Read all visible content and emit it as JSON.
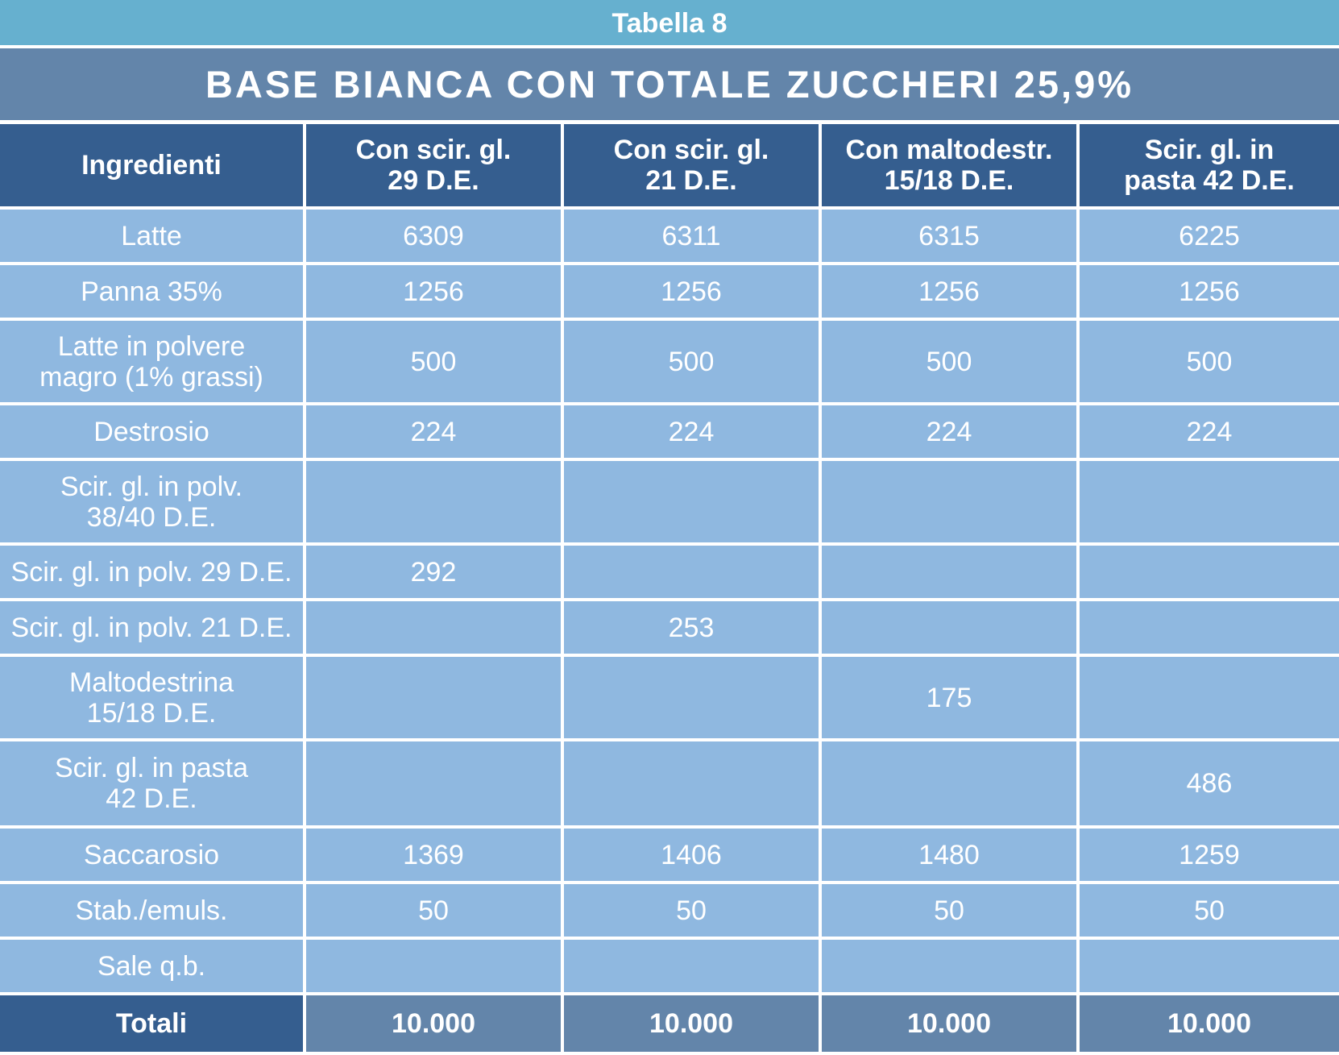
{
  "table_label": "Tabella 8",
  "title": "BASE BIANCA CON TOTALE ZUCCHERI 25,9%",
  "header": {
    "ingredients": "Ingredienti",
    "columns": [
      {
        "line1": "Con scir. gl.",
        "line2": "29 D.E."
      },
      {
        "line1": "Con scir. gl.",
        "line2": "21 D.E."
      },
      {
        "line1": "Con maltodestr.",
        "line2": "15/18 D.E."
      },
      {
        "line1": "Scir. gl. in",
        "line2": "pasta 42 D.E."
      }
    ]
  },
  "rows": [
    {
      "label1": "Latte",
      "label2": "",
      "values": [
        "6309",
        "6311",
        "6315",
        "6225"
      ]
    },
    {
      "label1": "Panna 35%",
      "label2": "",
      "values": [
        "1256",
        "1256",
        "1256",
        "1256"
      ]
    },
    {
      "label1": "Latte in polvere",
      "label2": "magro (1% grassi)",
      "values": [
        "500",
        "500",
        "500",
        "500"
      ]
    },
    {
      "label1": "Destrosio",
      "label2": "",
      "values": [
        "224",
        "224",
        "224",
        "224"
      ]
    },
    {
      "label1": "Scir. gl. in polv.",
      "label2": "38/40 D.E.",
      "values": [
        "",
        "",
        "",
        ""
      ]
    },
    {
      "label1": "Scir. gl. in polv. 29 D.E.",
      "label2": "",
      "values": [
        "292",
        "",
        "",
        ""
      ]
    },
    {
      "label1": "Scir. gl. in polv. 21 D.E.",
      "label2": "",
      "values": [
        "",
        "253",
        "",
        ""
      ]
    },
    {
      "label1": "Maltodestrina",
      "label2": "15/18 D.E.",
      "values": [
        "",
        "",
        "175",
        ""
      ]
    },
    {
      "label1": "Scir. gl. in pasta",
      "label2": "42 D.E.",
      "values": [
        "",
        "",
        "",
        "486"
      ]
    },
    {
      "label1": "Saccarosio",
      "label2": "",
      "values": [
        "1369",
        "1406",
        "1480",
        "1259"
      ]
    },
    {
      "label1": "Stab./emuls.",
      "label2": "",
      "values": [
        "50",
        "50",
        "50",
        "50"
      ]
    },
    {
      "label1": "Sale q.b.",
      "label2": "",
      "values": [
        "",
        "",
        "",
        ""
      ]
    }
  ],
  "totals": {
    "label": "Totali",
    "values": [
      "10.000",
      "10.000",
      "10.000",
      "10.000"
    ]
  }
}
